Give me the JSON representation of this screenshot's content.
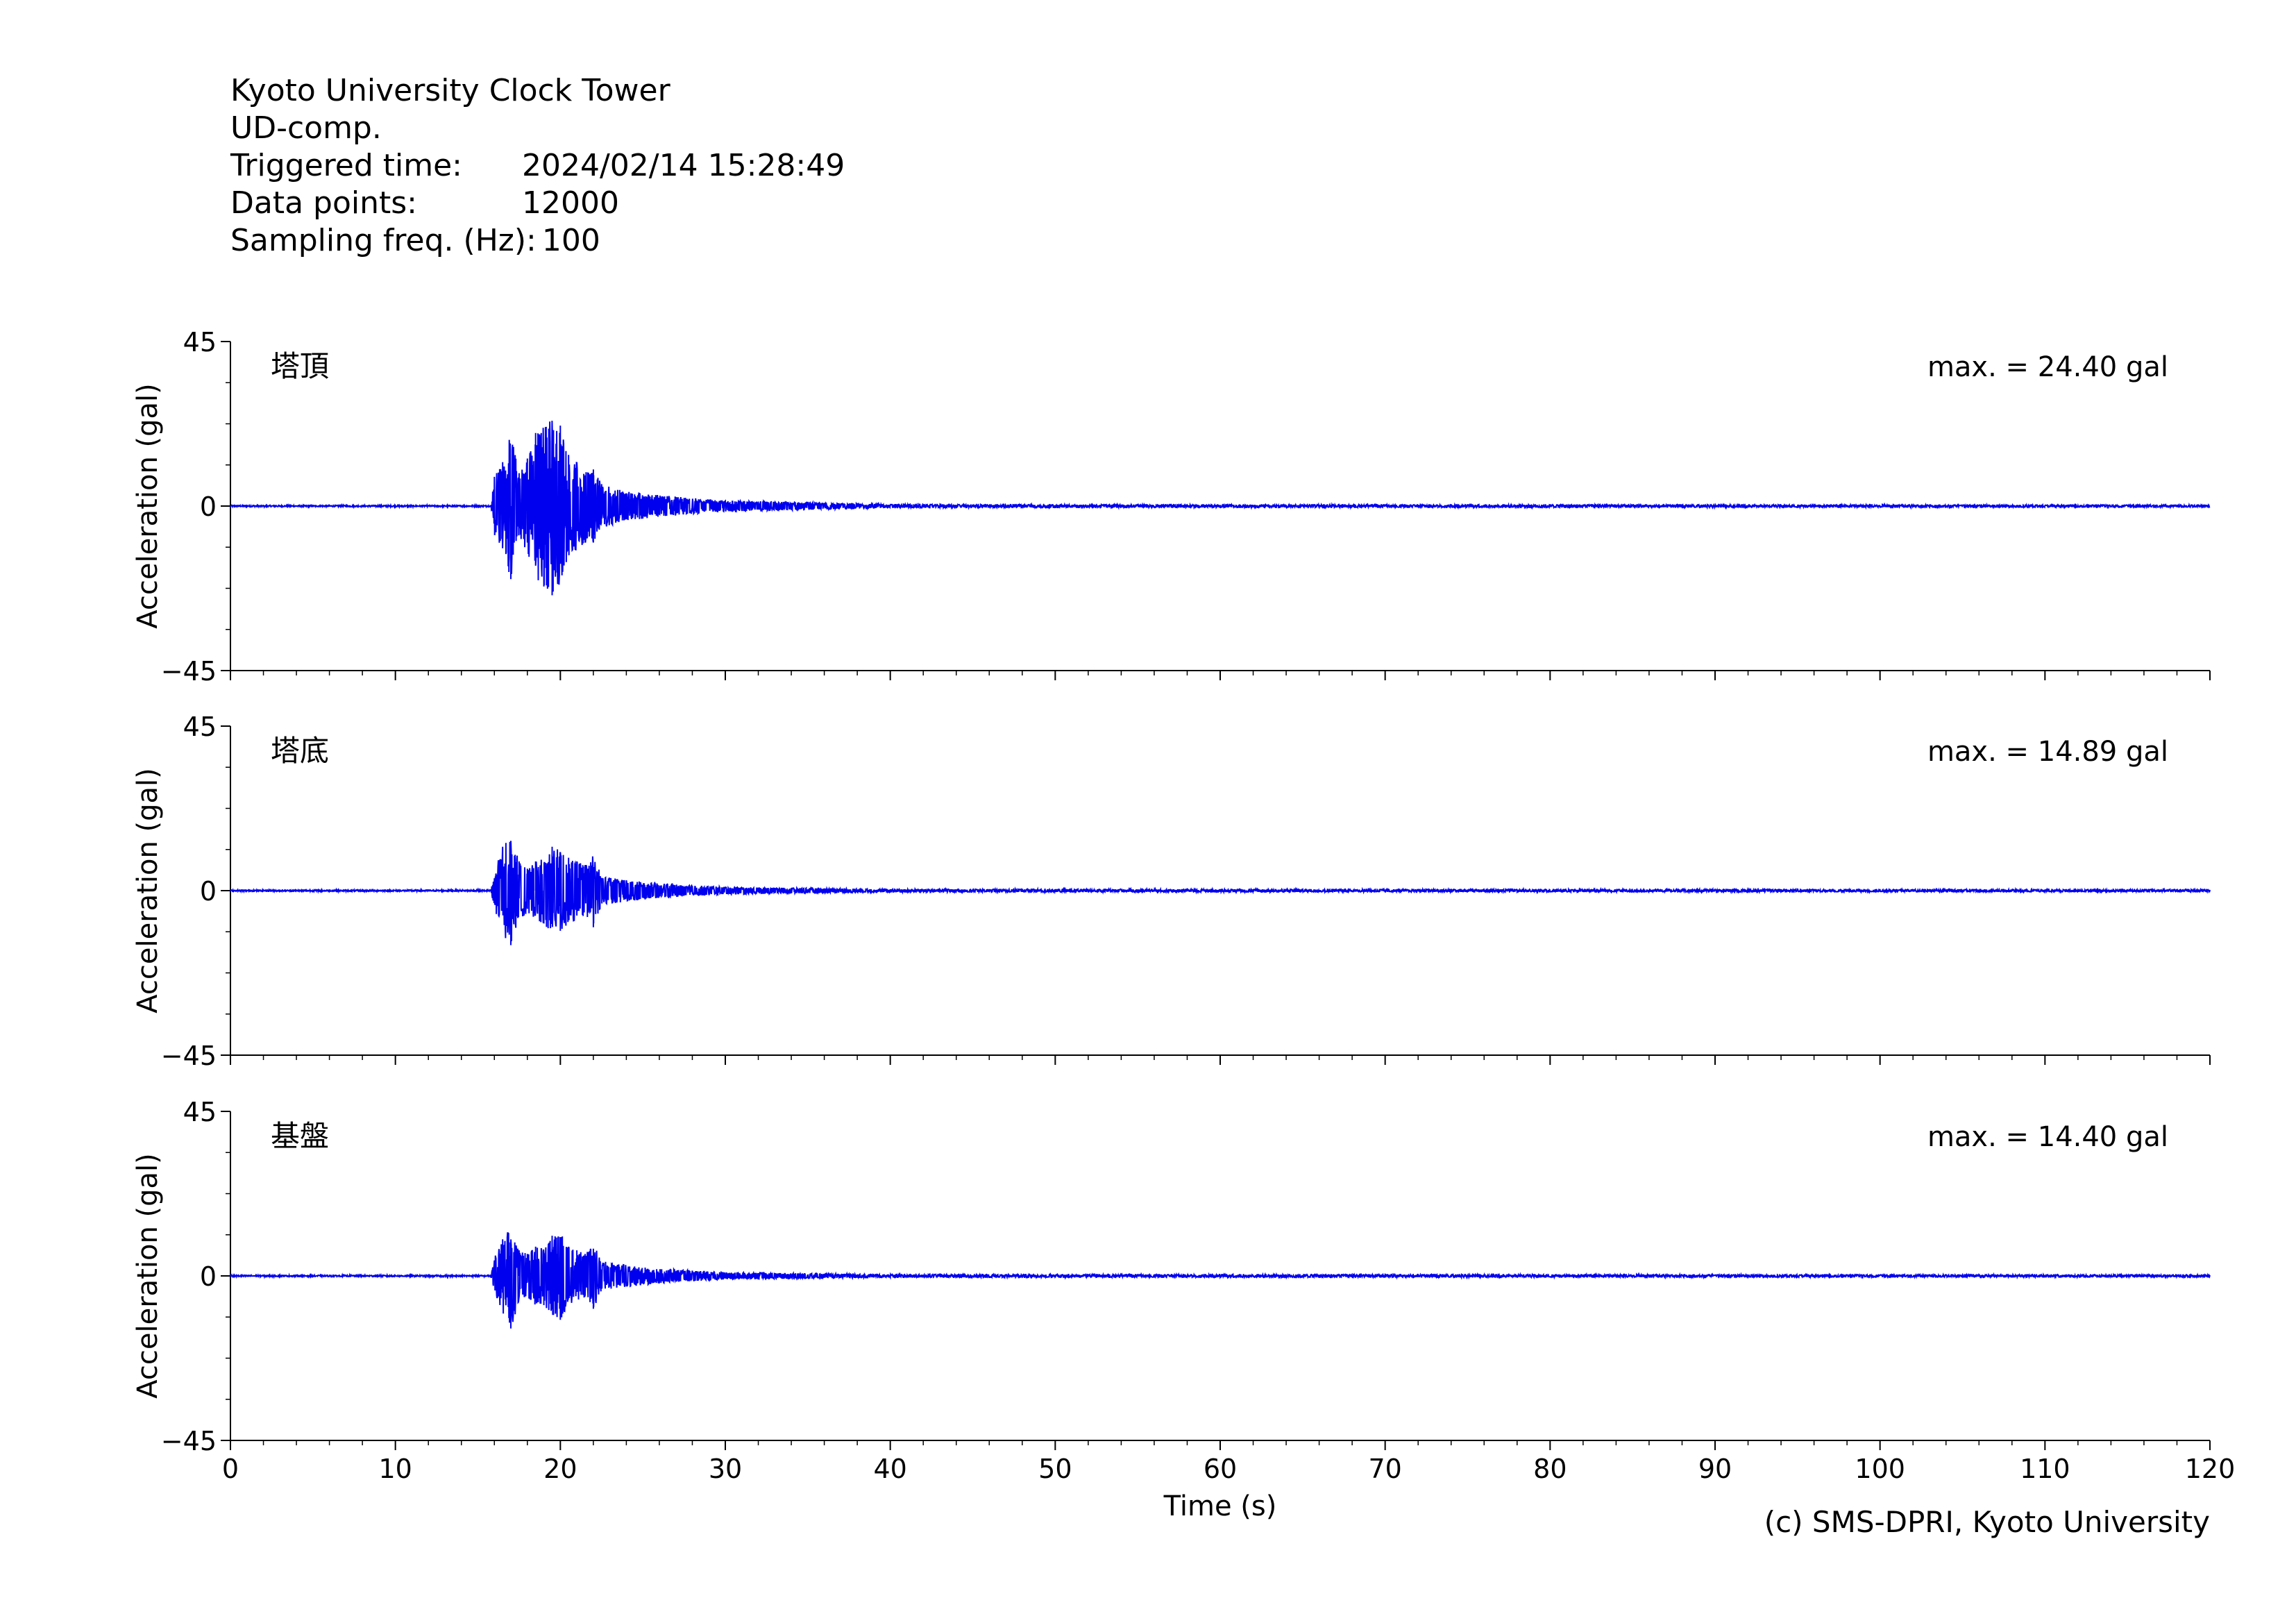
{
  "header": {
    "station": "Kyoto University Clock Tower",
    "component": "UD-comp.",
    "triggered_label": "Triggered time:",
    "triggered_value": "2024/02/14 15:28:49",
    "points_label": "Data points:",
    "points_value": "12000",
    "freq_label": "Sampling freq. (Hz):",
    "freq_value": "100"
  },
  "copyright": "(c) SMS-DPRI, Kyoto University",
  "colors": {
    "trace": "#0000ee",
    "axis": "#000000"
  },
  "chart_data": {
    "type": "line",
    "xlabel": "Time (s)",
    "ylabel": "Acceleration (gal)",
    "xlim": [
      0,
      120
    ],
    "ylim": [
      -45,
      45
    ],
    "x_ticks": [
      "0",
      "10",
      "20",
      "30",
      "40",
      "50",
      "60",
      "70",
      "80",
      "90",
      "100",
      "110",
      "120"
    ],
    "y_ticks": [
      "45",
      "0",
      "−45"
    ],
    "panels": [
      {
        "name": "塔頂",
        "max_label": "max. = 24.40 gal",
        "envelope": [
          [
            0,
            0.3
          ],
          [
            15.8,
            0.3
          ],
          [
            16,
            8
          ],
          [
            16.5,
            12
          ],
          [
            17,
            -20
          ],
          [
            17.5,
            9
          ],
          [
            18,
            13
          ],
          [
            18.5,
            20
          ],
          [
            19,
            -22
          ],
          [
            19.5,
            -24.4
          ],
          [
            20,
            22
          ],
          [
            20.5,
            14
          ],
          [
            21,
            12
          ],
          [
            21.5,
            -10
          ],
          [
            22,
            10
          ],
          [
            22.5,
            6
          ],
          [
            24,
            4
          ],
          [
            26,
            3
          ],
          [
            28,
            2.2
          ],
          [
            30,
            1.5
          ],
          [
            33,
            1.2
          ],
          [
            36,
            0.9
          ],
          [
            40,
            0.5
          ],
          [
            45,
            0.4
          ],
          [
            120,
            0.3
          ]
        ]
      },
      {
        "name": "塔底",
        "max_label": "max. = 14.89 gal",
        "envelope": [
          [
            0,
            0.3
          ],
          [
            15.8,
            0.3
          ],
          [
            16,
            5
          ],
          [
            16.5,
            12
          ],
          [
            17,
            -14.9
          ],
          [
            17.5,
            8
          ],
          [
            18,
            6
          ],
          [
            18.5,
            8
          ],
          [
            19,
            -9
          ],
          [
            19.5,
            12
          ],
          [
            20,
            -11
          ],
          [
            20.5,
            9
          ],
          [
            21,
            8
          ],
          [
            21.5,
            7
          ],
          [
            22,
            -10
          ],
          [
            22.5,
            4
          ],
          [
            24,
            3
          ],
          [
            26,
            2
          ],
          [
            28,
            1.5
          ],
          [
            30,
            1
          ],
          [
            35,
            0.7
          ],
          [
            40,
            0.4
          ],
          [
            120,
            0.3
          ]
        ]
      },
      {
        "name": "基盤",
        "max_label": "max. = 14.40 gal",
        "envelope": [
          [
            0,
            0.3
          ],
          [
            15.8,
            0.3
          ],
          [
            16,
            5
          ],
          [
            16.5,
            10
          ],
          [
            17,
            -14.4
          ],
          [
            17.5,
            7
          ],
          [
            18,
            6
          ],
          [
            18.5,
            8
          ],
          [
            19,
            -8
          ],
          [
            19.5,
            11
          ],
          [
            20,
            -12
          ],
          [
            20.5,
            8
          ],
          [
            21,
            7
          ],
          [
            21.5,
            6
          ],
          [
            22,
            -9
          ],
          [
            22.5,
            4
          ],
          [
            24,
            3
          ],
          [
            26,
            2
          ],
          [
            28,
            1.5
          ],
          [
            30,
            1
          ],
          [
            35,
            0.7
          ],
          [
            40,
            0.4
          ],
          [
            120,
            0.3
          ]
        ]
      }
    ]
  }
}
